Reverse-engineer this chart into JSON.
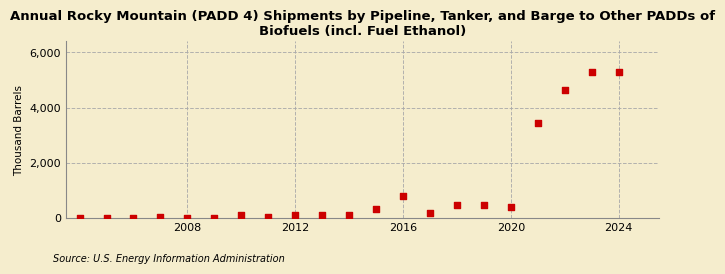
{
  "title": "Annual Rocky Mountain (PADD 4) Shipments by Pipeline, Tanker, and Barge to Other PADDs of\nBiofuels (incl. Fuel Ethanol)",
  "ylabel": "Thousand Barrels",
  "source": "Source: U.S. Energy Information Administration",
  "background_color": "#f5edcd",
  "plot_bg_color": "#f5edcd",
  "marker_color": "#cc0000",
  "years": [
    2004,
    2005,
    2006,
    2007,
    2008,
    2009,
    2010,
    2011,
    2012,
    2013,
    2014,
    2015,
    2016,
    2017,
    2018,
    2019,
    2020,
    2021,
    2022,
    2023,
    2024
  ],
  "values": [
    5,
    3,
    3,
    20,
    5,
    3,
    100,
    10,
    80,
    90,
    100,
    300,
    800,
    170,
    450,
    450,
    380,
    3450,
    4620,
    5280,
    5300
  ],
  "xlim": [
    2003.5,
    2025.5
  ],
  "ylim": [
    0,
    6400
  ],
  "yticks": [
    0,
    2000,
    4000,
    6000
  ],
  "xticks": [
    2008,
    2012,
    2016,
    2020,
    2024
  ],
  "title_fontsize": 9.5,
  "label_fontsize": 7.5,
  "tick_fontsize": 8,
  "source_fontsize": 7
}
